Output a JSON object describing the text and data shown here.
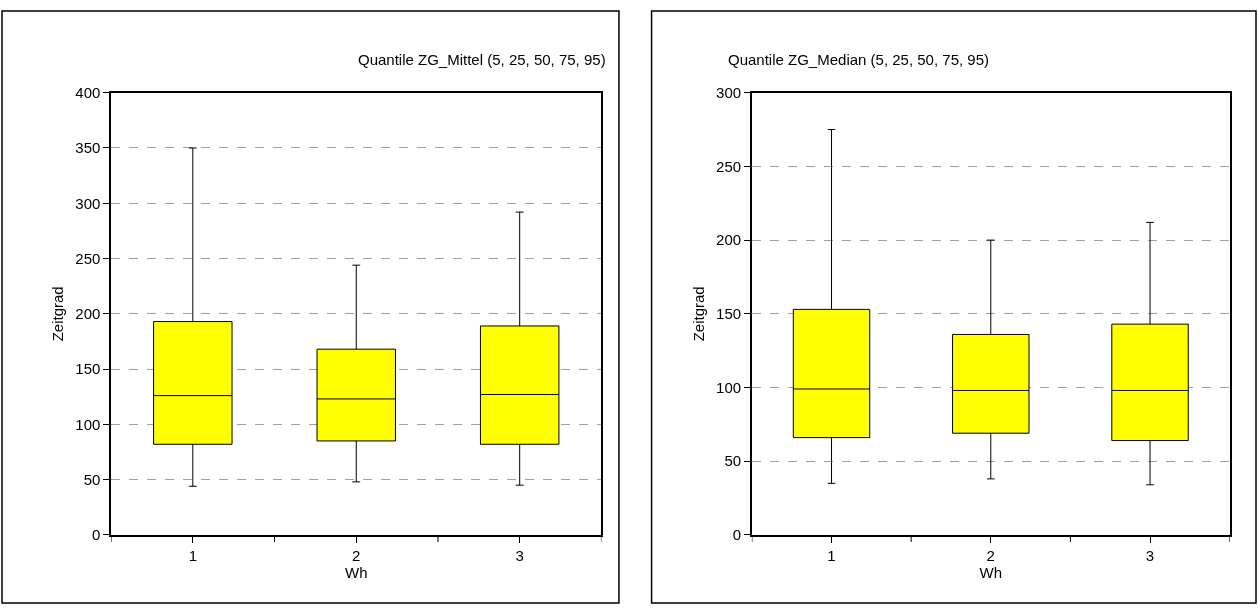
{
  "chart_data": [
    {
      "type": "box",
      "title": "Quantile ZG_Mittel (5, 25, 50, 75, 95)",
      "xlabel": "Wh",
      "ylabel": "Zeitgrad",
      "categories": [
        "1",
        "2",
        "3"
      ],
      "color": "#ffff00",
      "ylim": [
        0,
        400
      ],
      "yticks": [
        0,
        50,
        100,
        150,
        200,
        250,
        300,
        350,
        400
      ],
      "grid": "y",
      "boxes": [
        {
          "low": 44,
          "q1": 82,
          "median": 126,
          "q3": 193,
          "high": 350
        },
        {
          "low": 48,
          "q1": 85,
          "median": 123,
          "q3": 168,
          "high": 244
        },
        {
          "low": 45,
          "q1": 82,
          "median": 127,
          "q3": 189,
          "high": 292
        }
      ]
    },
    {
      "type": "box",
      "title": "Quantile ZG_Median (5, 25, 50, 75, 95)",
      "xlabel": "Wh",
      "ylabel": "Zeitgrad",
      "categories": [
        "1",
        "2",
        "3"
      ],
      "color": "#ffff00",
      "ylim": [
        0,
        300
      ],
      "yticks": [
        0,
        50,
        100,
        150,
        200,
        250,
        300
      ],
      "grid": "y",
      "boxes": [
        {
          "low": 35,
          "q1": 66,
          "median": 99,
          "q3": 153,
          "high": 275
        },
        {
          "low": 38,
          "q1": 69,
          "median": 98,
          "q3": 136,
          "high": 200
        },
        {
          "low": 34,
          "q1": 64,
          "median": 98,
          "q3": 143,
          "high": 212
        }
      ]
    }
  ]
}
